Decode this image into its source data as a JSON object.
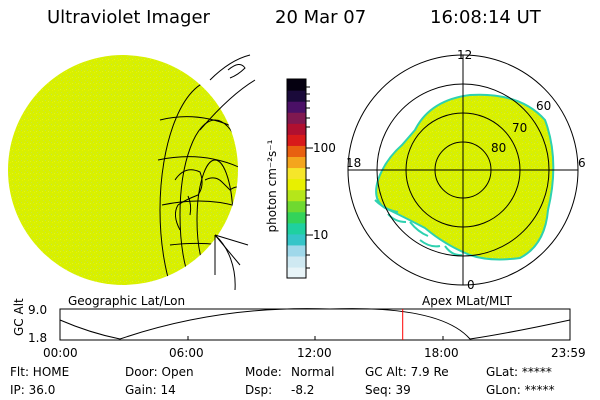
{
  "header": {
    "instrument": "Ultraviolet Imager",
    "date": "20 Mar 07",
    "time": "16:08:14 UT"
  },
  "colorbar": {
    "unit": "photon cm⁻²s⁻¹",
    "tick_labels": [
      "100",
      "10"
    ],
    "colors": [
      "#e8f4f8",
      "#cfe9f2",
      "#9fd8ea",
      "#35c5c8",
      "#1fd0a0",
      "#33d35a",
      "#6fd930",
      "#b5e61a",
      "#e8f000",
      "#f6e62a",
      "#f4a51d",
      "#e86010",
      "#d81a1a",
      "#b01030",
      "#801850",
      "#4a1066",
      "#1a0a3a",
      "#050010"
    ]
  },
  "geo_panel": {
    "label": "Geographic Lat/Lon",
    "fill_color": "#d8f000"
  },
  "polar_panel": {
    "label": "Apex MLat/MLT",
    "mlt_labels": {
      "top": "12",
      "left": "18",
      "right": "6",
      "bottom": "0"
    },
    "mlat_labels": [
      "60",
      "70",
      "80"
    ],
    "fill_color": "#d8f000",
    "edge_color": "#2ed1b0"
  },
  "gc_alt_plot": {
    "ylabel": "GC Alt",
    "yticks": [
      "9.0",
      "1.8"
    ],
    "xticks": [
      "00:00",
      "06:00",
      "12:00",
      "18:00",
      "23:59"
    ],
    "marker_color": "#ff0000",
    "current_time_fraction": 0.672
  },
  "status": {
    "filter": "Flt: HOME",
    "door": "Door: Open",
    "mode_label": "Mode:",
    "mode_value": "Normal",
    "gc_alt": "GC Alt: 7.9 Re",
    "glat": "GLat: *****",
    "ip": "IP: 36.0",
    "gain": "Gain: 14",
    "dsp_label": "Dsp:",
    "dsp_value": "-8.2",
    "seq": "Seq: 39",
    "glon": "GLon: *****"
  }
}
